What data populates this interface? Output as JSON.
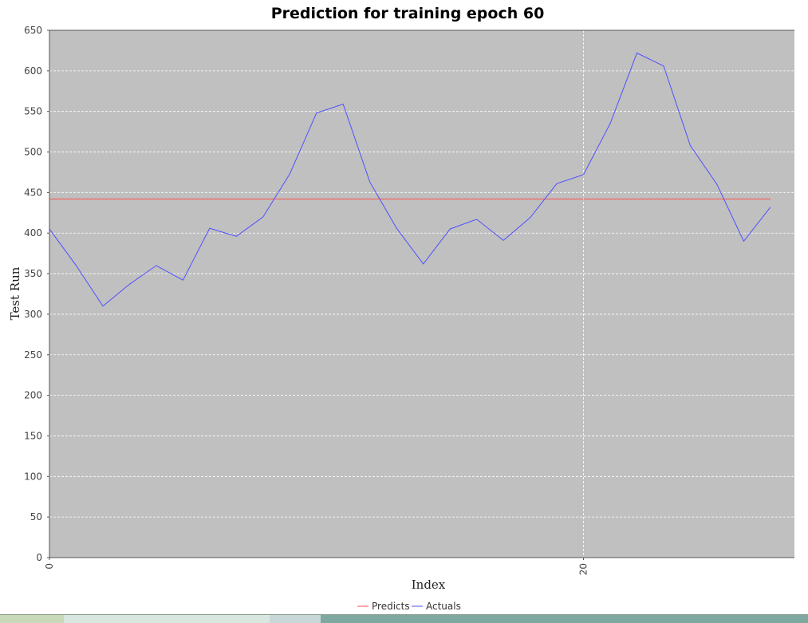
{
  "chart_data": {
    "type": "line",
    "title": "Prediction for training epoch 60",
    "xlabel": "Index",
    "ylabel": "Test Run",
    "xlim": [
      0,
      27.9
    ],
    "ylim": [
      0,
      650
    ],
    "x_ticks": [
      "0",
      "20"
    ],
    "y_ticks": [
      "0",
      "50",
      "100",
      "150",
      "200",
      "250",
      "300",
      "350",
      "400",
      "450",
      "500",
      "550",
      "600",
      "650"
    ],
    "grid": true,
    "legend_position": "bottom-center",
    "background": "#c0c0c0",
    "series": [
      {
        "name": "Predicts",
        "color": "#ff5050",
        "x": [
          0,
          1,
          2,
          3,
          4,
          5,
          6,
          7,
          8,
          9,
          10,
          11,
          12,
          13,
          14,
          15,
          16,
          17,
          18,
          19,
          20,
          21,
          22,
          23,
          24,
          25,
          26,
          27
        ],
        "values": [
          442,
          442,
          442,
          442,
          442,
          442,
          442,
          442,
          442,
          442,
          442,
          442,
          442,
          442,
          442,
          442,
          442,
          442,
          442,
          442,
          442,
          442,
          442,
          442,
          442,
          442,
          442,
          442
        ]
      },
      {
        "name": "Actuals",
        "color": "#5050ff",
        "x": [
          0,
          1,
          2,
          3,
          4,
          5,
          6,
          7,
          8,
          9,
          10,
          11,
          12,
          13,
          14,
          15,
          16,
          17,
          18,
          19,
          20,
          21,
          22,
          23,
          24,
          25,
          26,
          27
        ],
        "values": [
          405,
          360,
          310,
          337,
          360,
          342,
          406,
          396,
          420,
          473,
          548,
          559,
          463,
          406,
          362,
          405,
          417,
          391,
          419,
          461,
          472,
          535,
          622,
          606,
          508,
          460,
          390,
          432
        ]
      }
    ]
  },
  "taskbar": {
    "colors": [
      "#c8d8b8",
      "#d8e8e0",
      "#c8d8d8",
      "#7fa8a0"
    ]
  }
}
